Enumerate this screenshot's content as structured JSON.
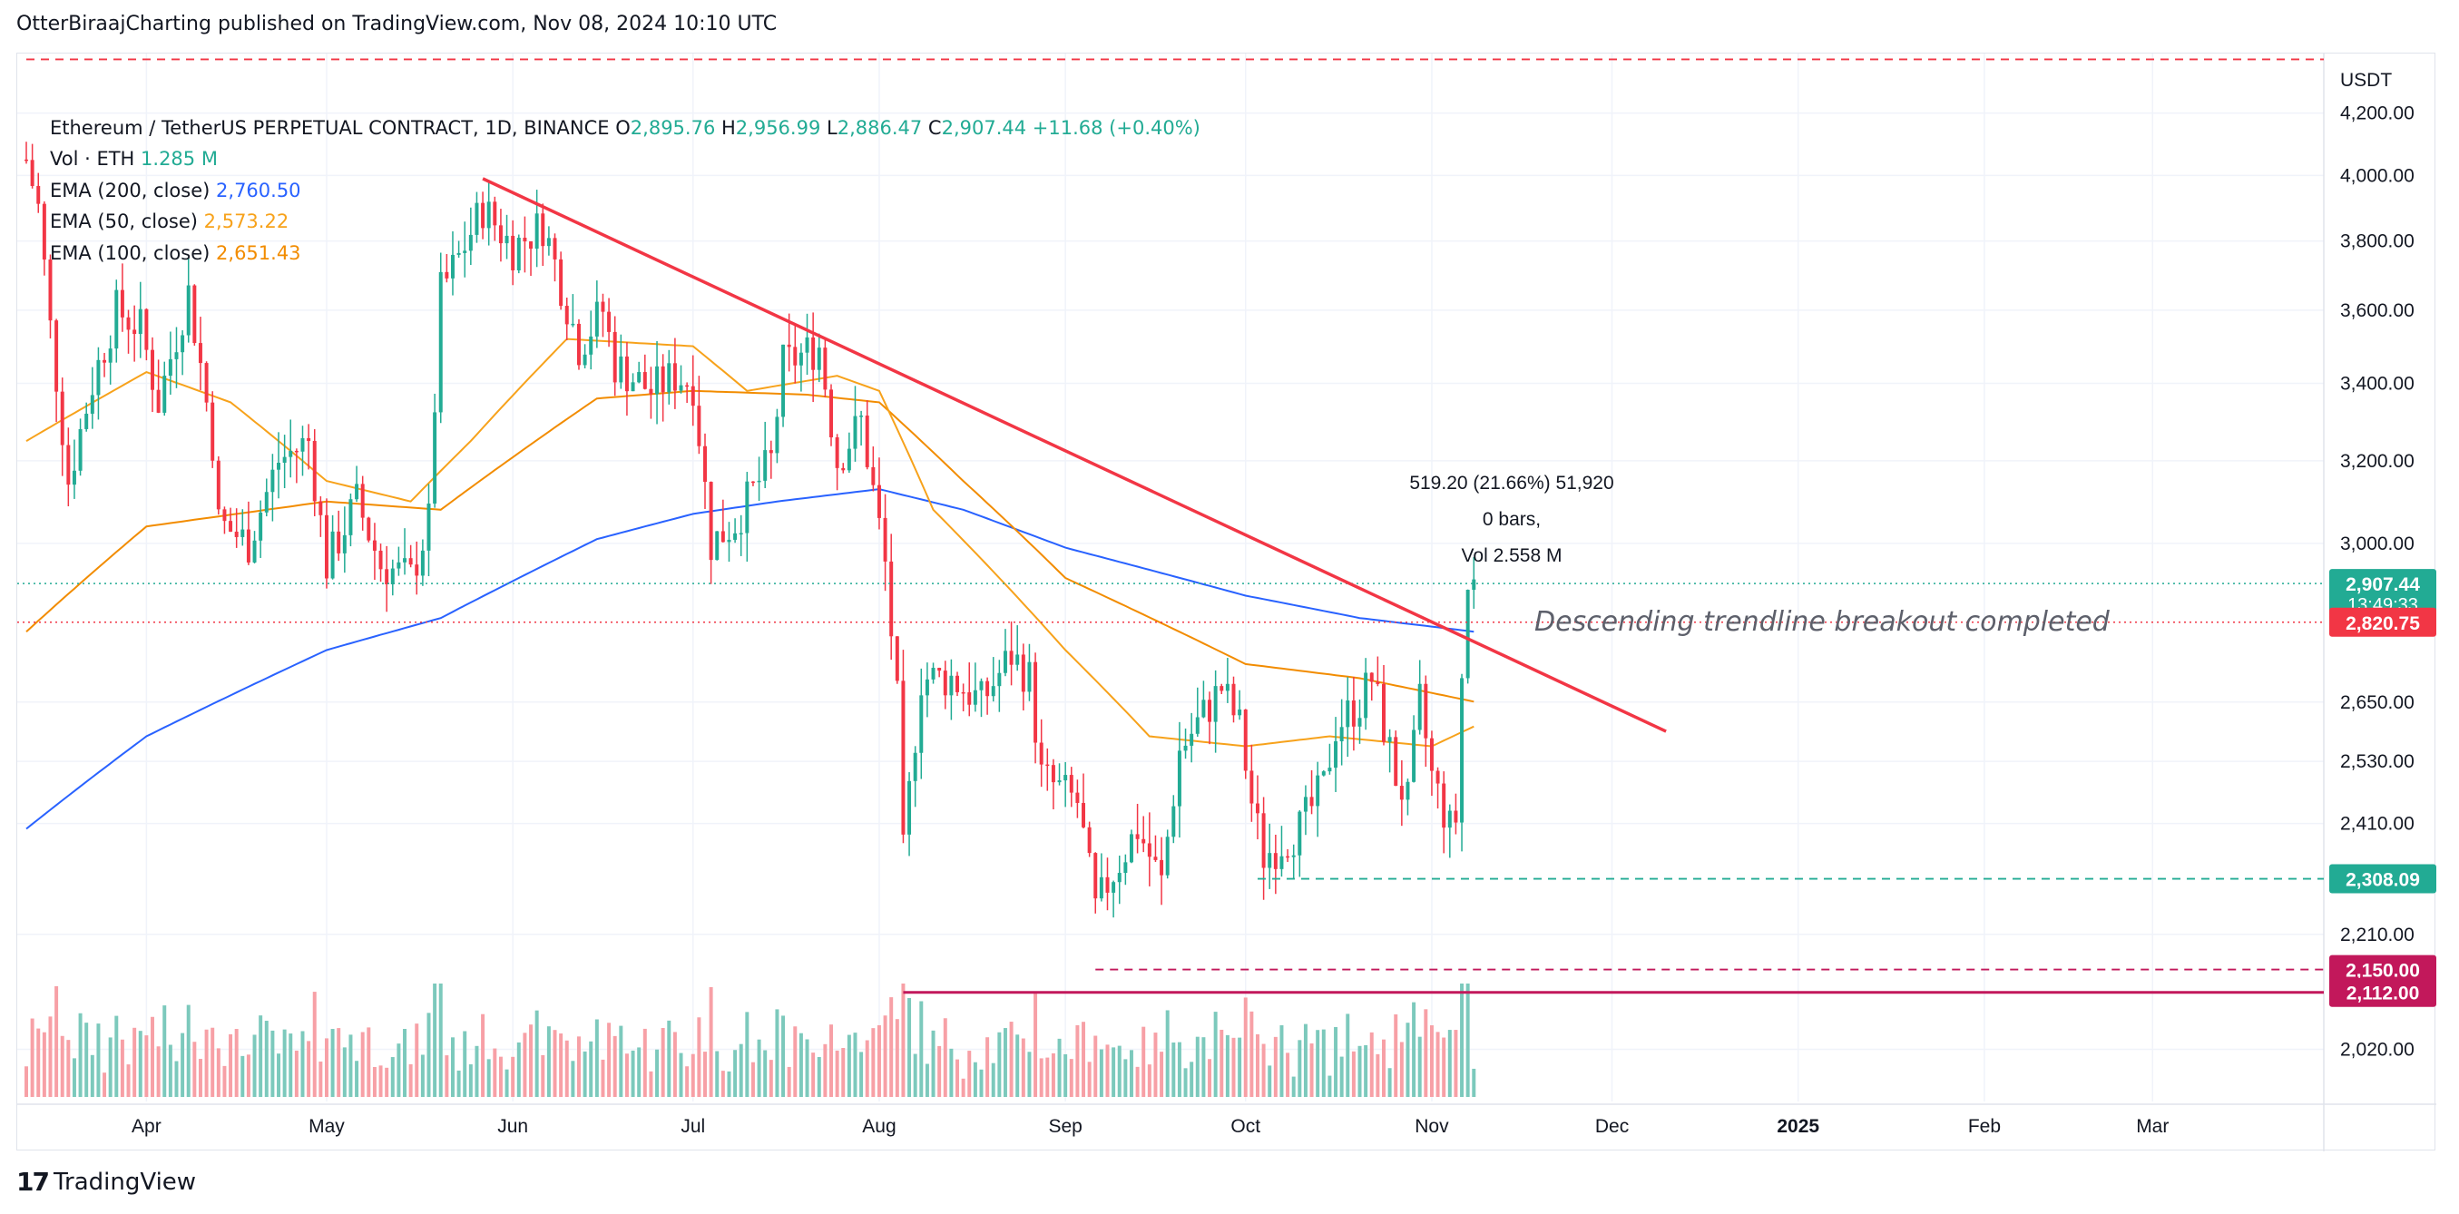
{
  "header": {
    "caption": "OtterBiraajCharting published on TradingView.com, Nov 08, 2024 10:10 UTC"
  },
  "legend": {
    "symbol": "Ethereum / TetherUS PERPETUAL CONTRACT, 1D, BINANCE",
    "o_label": "O",
    "o_value": "2,895.76",
    "h_label": "H",
    "h_value": "2,956.99",
    "l_label": "L",
    "l_value": "2,886.47",
    "c_label": "C",
    "c_value": "2,907.44",
    "change": "+11.68 (+0.40%)",
    "vol_label": "Vol · ETH",
    "vol_value": "1.285 M",
    "ema200_label": "EMA (200, close)",
    "ema200_value": "2,760.50",
    "ema50_label": "EMA (50, close)",
    "ema50_value": "2,573.22",
    "ema100_label": "EMA (100, close)",
    "ema100_value": "2,651.43"
  },
  "footer": {
    "brand": "TradingView",
    "logo_mark": "17"
  },
  "colors": {
    "up": "#22ab94",
    "down": "#f23645",
    "up_vol": "#7cc9bc",
    "down_vol": "#f7a0a6",
    "ema200": "#2962ff",
    "ema50": "#f7a21b",
    "ema100": "#f28c00",
    "trendline": "#f23645",
    "support": "#c2185b",
    "grid": "#f0f3fa",
    "axis_text": "#131722"
  },
  "chart_data": {
    "type": "candlestick",
    "title": "Ethereum / TetherUS PERPETUAL CONTRACT, 1D, BINANCE",
    "x_range": [
      "2024-03-12",
      "2025-03-28"
    ],
    "y_scale": "log",
    "ylim": [
      1960,
      4400
    ],
    "y_axis_unit": "USDT",
    "y_ticks": [
      {
        "v": 4200,
        "t": "4,200.00"
      },
      {
        "v": 4000,
        "t": "4,000.00"
      },
      {
        "v": 3800,
        "t": "3,800.00"
      },
      {
        "v": 3600,
        "t": "3,600.00"
      },
      {
        "v": 3400,
        "t": "3,400.00"
      },
      {
        "v": 3200,
        "t": "3,200.00"
      },
      {
        "v": 3000,
        "t": "3,000.00"
      },
      {
        "v": 2650,
        "t": "2,650.00"
      },
      {
        "v": 2530,
        "t": "2,530.00"
      },
      {
        "v": 2410,
        "t": "2,410.00"
      },
      {
        "v": 2210,
        "t": "2,210.00"
      },
      {
        "v": 2020,
        "t": "2,020.00"
      }
    ],
    "x_ticks": [
      {
        "d": "2024-04-01",
        "t": "Apr"
      },
      {
        "d": "2024-05-01",
        "t": "May"
      },
      {
        "d": "2024-06-01",
        "t": "Jun"
      },
      {
        "d": "2024-07-01",
        "t": "Jul"
      },
      {
        "d": "2024-08-01",
        "t": "Aug"
      },
      {
        "d": "2024-09-01",
        "t": "Sep"
      },
      {
        "d": "2024-10-01",
        "t": "Oct"
      },
      {
        "d": "2024-11-01",
        "t": "Nov"
      },
      {
        "d": "2024-12-01",
        "t": "Dec"
      },
      {
        "d": "2025-01-01",
        "t": "2025"
      },
      {
        "d": "2025-02-01",
        "t": "Feb"
      },
      {
        "d": "2025-03-01",
        "t": "Mar"
      }
    ],
    "price_anchors": [
      [
        "2024-03-12",
        4050
      ],
      [
        "2024-03-14",
        3900
      ],
      [
        "2024-03-16",
        3550
      ],
      [
        "2024-03-19",
        3150
      ],
      [
        "2024-03-23",
        3400
      ],
      [
        "2024-03-27",
        3600
      ],
      [
        "2024-03-31",
        3550
      ],
      [
        "2024-04-03",
        3350
      ],
      [
        "2024-04-08",
        3650
      ],
      [
        "2024-04-12",
        3250
      ],
      [
        "2024-04-13",
        3050
      ],
      [
        "2024-04-18",
        3000
      ],
      [
        "2024-04-23",
        3200
      ],
      [
        "2024-04-28",
        3250
      ],
      [
        "2024-05-01",
        2950
      ],
      [
        "2024-05-06",
        3100
      ],
      [
        "2024-05-10",
        2950
      ],
      [
        "2024-05-15",
        2920
      ],
      [
        "2024-05-18",
        3050
      ],
      [
        "2024-05-20",
        3650
      ],
      [
        "2024-05-23",
        3750
      ],
      [
        "2024-05-27",
        3900
      ],
      [
        "2024-06-01",
        3780
      ],
      [
        "2024-06-06",
        3850
      ],
      [
        "2024-06-12",
        3500
      ],
      [
        "2024-06-16",
        3600
      ],
      [
        "2024-06-18",
        3450
      ],
      [
        "2024-06-24",
        3380
      ],
      [
        "2024-06-28",
        3420
      ],
      [
        "2024-07-01",
        3400
      ],
      [
        "2024-07-04",
        3000
      ],
      [
        "2024-07-08",
        3050
      ],
      [
        "2024-07-14",
        3200
      ],
      [
        "2024-07-16",
        3450
      ],
      [
        "2024-07-22",
        3500
      ],
      [
        "2024-07-25",
        3200
      ],
      [
        "2024-07-29",
        3300
      ],
      [
        "2024-08-02",
        2950
      ],
      [
        "2024-08-04",
        2650
      ],
      [
        "2024-08-05",
        2350
      ],
      [
        "2024-08-08",
        2700
      ],
      [
        "2024-08-13",
        2700
      ],
      [
        "2024-08-18",
        2650
      ],
      [
        "2024-08-23",
        2750
      ],
      [
        "2024-08-26",
        2700
      ],
      [
        "2024-08-28",
        2500
      ],
      [
        "2024-09-03",
        2450
      ],
      [
        "2024-09-06",
        2250
      ],
      [
        "2024-09-08",
        2300
      ],
      [
        "2024-09-13",
        2400
      ],
      [
        "2024-09-17",
        2300
      ],
      [
        "2024-09-20",
        2550
      ],
      [
        "2024-09-27",
        2680
      ],
      [
        "2024-09-30",
        2600
      ],
      [
        "2024-10-02",
        2450
      ],
      [
        "2024-10-04",
        2350
      ],
      [
        "2024-10-10",
        2400
      ],
      [
        "2024-10-14",
        2480
      ],
      [
        "2024-10-16",
        2600
      ],
      [
        "2024-10-20",
        2650
      ],
      [
        "2024-10-22",
        2700
      ],
      [
        "2024-10-26",
        2500
      ],
      [
        "2024-10-28",
        2450
      ],
      [
        "2024-10-30",
        2650
      ],
      [
        "2024-11-01",
        2500
      ],
      [
        "2024-11-04",
        2400
      ],
      [
        "2024-11-05",
        2420
      ],
      [
        "2024-11-06",
        2700
      ],
      [
        "2024-11-07",
        2895
      ],
      [
        "2024-11-08",
        2907
      ]
    ],
    "ema200_anchors": [
      [
        "2024-03-12",
        2400
      ],
      [
        "2024-04-01",
        2580
      ],
      [
        "2024-05-01",
        2760
      ],
      [
        "2024-05-20",
        2830
      ],
      [
        "2024-06-15",
        3010
      ],
      [
        "2024-07-01",
        3070
      ],
      [
        "2024-07-15",
        3100
      ],
      [
        "2024-08-01",
        3130
      ],
      [
        "2024-08-15",
        3080
      ],
      [
        "2024-09-01",
        2990
      ],
      [
        "2024-10-01",
        2880
      ],
      [
        "2024-10-20",
        2830
      ],
      [
        "2024-11-08",
        2800
      ]
    ],
    "ema50_anchors": [
      [
        "2024-03-12",
        3250
      ],
      [
        "2024-04-01",
        3430
      ],
      [
        "2024-04-15",
        3350
      ],
      [
        "2024-05-01",
        3150
      ],
      [
        "2024-05-15",
        3100
      ],
      [
        "2024-05-25",
        3250
      ],
      [
        "2024-06-10",
        3520
      ],
      [
        "2024-07-01",
        3500
      ],
      [
        "2024-07-10",
        3380
      ],
      [
        "2024-07-25",
        3420
      ],
      [
        "2024-08-01",
        3380
      ],
      [
        "2024-08-10",
        3080
      ],
      [
        "2024-09-01",
        2760
      ],
      [
        "2024-09-15",
        2580
      ],
      [
        "2024-10-01",
        2560
      ],
      [
        "2024-10-15",
        2580
      ],
      [
        "2024-11-01",
        2560
      ],
      [
        "2024-11-08",
        2600
      ]
    ],
    "ema100_anchors": [
      [
        "2024-03-12",
        2800
      ],
      [
        "2024-04-01",
        3040
      ],
      [
        "2024-05-01",
        3100
      ],
      [
        "2024-05-20",
        3080
      ],
      [
        "2024-06-15",
        3360
      ],
      [
        "2024-07-01",
        3380
      ],
      [
        "2024-07-20",
        3370
      ],
      [
        "2024-08-01",
        3350
      ],
      [
        "2024-08-15",
        3150
      ],
      [
        "2024-09-01",
        2920
      ],
      [
        "2024-10-01",
        2730
      ],
      [
        "2024-10-20",
        2700
      ],
      [
        "2024-11-08",
        2651
      ]
    ],
    "trendline": {
      "start": [
        "2024-05-27",
        3990
      ],
      "end": [
        "2024-12-10",
        2590
      ],
      "color": "#f23645"
    },
    "horizontal_levels": [
      {
        "value": 2308.09,
        "label": "2,308.09",
        "color": "#22ab94",
        "style": "dashed",
        "from": "2024-10-03"
      },
      {
        "value": 2150.0,
        "label": "2,150.00",
        "color": "#c2185b",
        "style": "dashed",
        "from": "2024-09-06"
      },
      {
        "value": 2112.0,
        "label": "2,112.00",
        "color": "#c2185b",
        "style": "solid",
        "from": "2024-08-05"
      },
      {
        "value": 4380,
        "label": "",
        "color": "#f23645",
        "style": "dashed",
        "from": "2024-03-12"
      }
    ],
    "price_labels": [
      {
        "value": 2907.44,
        "label": "2,907.44",
        "sublabel": "13:49:33",
        "color": "#22ab94",
        "line_style": "dotted"
      },
      {
        "value": 2820.75,
        "label": "2,820.75",
        "sublabel": "",
        "color": "#f23645",
        "line_style": "dotted"
      }
    ],
    "measure": {
      "line1": "519.20 (21.66%) 51,920",
      "line2": "0 bars,",
      "line3": "Vol 2.558 M"
    },
    "annotation": "Descending trendline breakout completed"
  }
}
